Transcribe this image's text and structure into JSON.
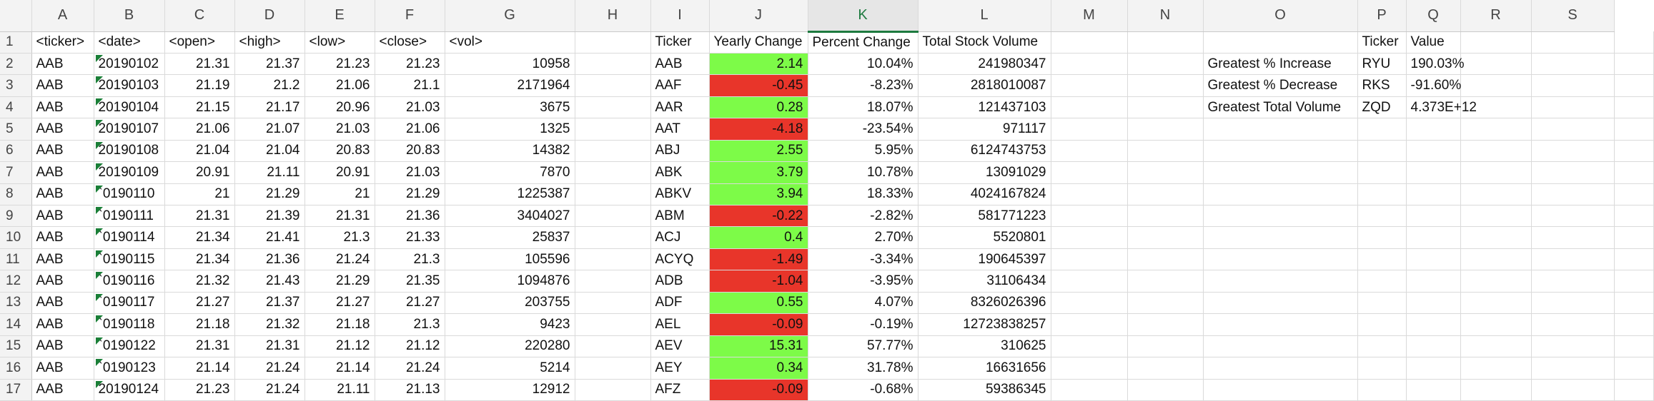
{
  "columns": [
    "A",
    "B",
    "C",
    "D",
    "E",
    "F",
    "G",
    "H",
    "I",
    "J",
    "K",
    "L",
    "M",
    "N",
    "O",
    "P",
    "Q",
    "R",
    "S"
  ],
  "selected_column": "K",
  "colors": {
    "positive": "#7dfb48",
    "negative": "#e8352a",
    "error_indicator": "#1a7f37",
    "selected_header": "#1d7a3f"
  },
  "rows": [
    {
      "n": "1",
      "A": "<ticker>",
      "B": "<date>",
      "C": "<open>",
      "D": "<high>",
      "E": "<low>",
      "F": "<close>",
      "G": "<vol>",
      "I": "Ticker",
      "J": "Yearly Change",
      "K": "Percent Change",
      "L": "Total Stock Volume",
      "O": "",
      "P": "Ticker",
      "Q": "Value"
    },
    {
      "n": "2",
      "A": "AAB",
      "B": "20190102",
      "C": "21.31",
      "D": "21.37",
      "E": "21.23",
      "F": "21.23",
      "G": "10958",
      "I": "AAB",
      "J": "2.14",
      "K": "10.04%",
      "L": "241980347",
      "O": "Greatest % Increase",
      "P": "RYU",
      "Q": "190.03%"
    },
    {
      "n": "3",
      "A": "AAB",
      "B": "20190103",
      "C": "21.19",
      "D": "21.2",
      "E": "21.06",
      "F": "21.1",
      "G": "2171964",
      "I": "AAF",
      "J": "-0.45",
      "K": "-8.23%",
      "L": "2818010087",
      "O": "Greatest % Decrease",
      "P": "RKS",
      "Q": "-91.60%"
    },
    {
      "n": "4",
      "A": "AAB",
      "B": "20190104",
      "C": "21.15",
      "D": "21.17",
      "E": "20.96",
      "F": "21.03",
      "G": "3675",
      "I": "AAR",
      "J": "0.28",
      "K": "18.07%",
      "L": "121437103",
      "O": "Greatest Total Volume",
      "P": "ZQD",
      "Q": "4.373E+12"
    },
    {
      "n": "5",
      "A": "AAB",
      "B": "20190107",
      "C": "21.06",
      "D": "21.07",
      "E": "21.03",
      "F": "21.06",
      "G": "1325",
      "I": "AAT",
      "J": "-4.18",
      "K": "-23.54%",
      "L": "971117",
      "O": "",
      "P": "",
      "Q": ""
    },
    {
      "n": "6",
      "A": "AAB",
      "B": "20190108",
      "C": "21.04",
      "D": "21.04",
      "E": "20.83",
      "F": "20.83",
      "G": "14382",
      "I": "ABJ",
      "J": "2.55",
      "K": "5.95%",
      "L": "6124743753",
      "O": "",
      "P": "",
      "Q": ""
    },
    {
      "n": "7",
      "A": "AAB",
      "B": "20190109",
      "C": "20.91",
      "D": "21.11",
      "E": "20.91",
      "F": "21.03",
      "G": "7870",
      "I": "ABK",
      "J": "3.79",
      "K": "10.78%",
      "L": "13091029",
      "O": "",
      "P": "",
      "Q": ""
    },
    {
      "n": "8",
      "A": "AAB",
      "B": "`0190110",
      "C": "21",
      "D": "21.29",
      "E": "21",
      "F": "21.29",
      "G": "1225387",
      "I": "ABKV",
      "J": "3.94",
      "K": "18.33%",
      "L": "4024167824",
      "O": "",
      "P": "",
      "Q": ""
    },
    {
      "n": "9",
      "A": "AAB",
      "B": "`0190111",
      "C": "21.31",
      "D": "21.39",
      "E": "21.31",
      "F": "21.36",
      "G": "3404027",
      "I": "ABM",
      "J": "-0.22",
      "K": "-2.82%",
      "L": "581771223",
      "O": "",
      "P": "",
      "Q": ""
    },
    {
      "n": "10",
      "A": "AAB",
      "B": "`0190114",
      "C": "21.34",
      "D": "21.41",
      "E": "21.3",
      "F": "21.33",
      "G": "25837",
      "I": "ACJ",
      "J": "0.4",
      "K": "2.70%",
      "L": "5520801",
      "O": "",
      "P": "",
      "Q": ""
    },
    {
      "n": "11",
      "A": "AAB",
      "B": "`0190115",
      "C": "21.34",
      "D": "21.36",
      "E": "21.24",
      "F": "21.3",
      "G": "105596",
      "I": "ACYQ",
      "J": "-1.49",
      "K": "-3.34%",
      "L": "190645397",
      "O": "",
      "P": "",
      "Q": ""
    },
    {
      "n": "12",
      "A": "AAB",
      "B": "`0190116",
      "C": "21.32",
      "D": "21.43",
      "E": "21.29",
      "F": "21.35",
      "G": "1094876",
      "I": "ADB",
      "J": "-1.04",
      "K": "-3.95%",
      "L": "31106434",
      "O": "",
      "P": "",
      "Q": ""
    },
    {
      "n": "13",
      "A": "AAB",
      "B": "`0190117",
      "C": "21.27",
      "D": "21.37",
      "E": "21.27",
      "F": "21.27",
      "G": "203755",
      "I": "ADF",
      "J": "0.55",
      "K": "4.07%",
      "L": "8326026396",
      "O": "",
      "P": "",
      "Q": ""
    },
    {
      "n": "14",
      "A": "AAB",
      "B": "`0190118",
      "C": "21.18",
      "D": "21.32",
      "E": "21.18",
      "F": "21.3",
      "G": "9423",
      "I": "AEL",
      "J": "-0.09",
      "K": "-0.19%",
      "L": "12723838257",
      "O": "",
      "P": "",
      "Q": ""
    },
    {
      "n": "15",
      "A": "AAB",
      "B": "`0190122",
      "C": "21.31",
      "D": "21.31",
      "E": "21.12",
      "F": "21.12",
      "G": "220280",
      "I": "AEV",
      "J": "15.31",
      "K": "57.77%",
      "L": "310625",
      "O": "",
      "P": "",
      "Q": ""
    },
    {
      "n": "16",
      "A": "AAB",
      "B": "`0190123",
      "C": "21.14",
      "D": "21.24",
      "E": "21.14",
      "F": "21.24",
      "G": "5214",
      "I": "AEY",
      "J": "0.34",
      "K": "31.78%",
      "L": "16631656",
      "O": "",
      "P": "",
      "Q": ""
    },
    {
      "n": "17",
      "A": "AAB",
      "B": "20190124",
      "C": "21.23",
      "D": "21.24",
      "E": "21.11",
      "F": "21.13",
      "G": "12912",
      "I": "AFZ",
      "J": "-0.09",
      "K": "-0.68%",
      "L": "59386345",
      "O": "",
      "P": "",
      "Q": ""
    }
  ]
}
